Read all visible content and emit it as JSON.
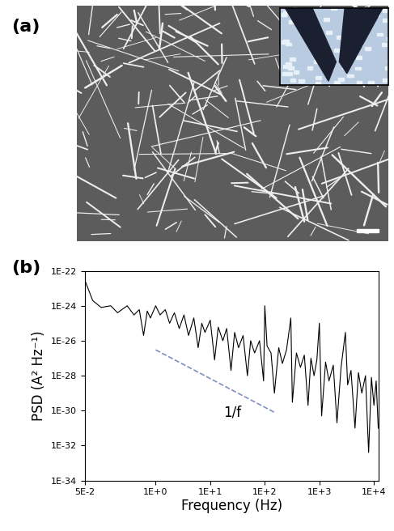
{
  "panel_labels": [
    "(a)",
    "(b)"
  ],
  "chart_data": {
    "type": "line",
    "xlabel": "Frequency (Hz)",
    "ylabel": "PSD (A² Hz⁻¹)",
    "log": true,
    "grid": false,
    "color": "#000000",
    "line_style": "solid",
    "x": [
      0.05,
      0.07,
      0.1,
      0.15,
      0.2,
      0.3,
      0.4,
      0.5,
      0.6,
      0.7,
      0.8,
      1.0,
      1.2,
      1.5,
      1.8,
      2.2,
      2.7,
      3.3,
      4,
      5,
      6,
      7,
      8,
      10,
      12,
      14,
      17,
      20,
      24,
      28,
      33,
      40,
      48,
      55,
      65,
      80,
      95,
      100,
      110,
      130,
      150,
      180,
      210,
      250,
      300,
      320,
      380,
      450,
      530,
      620,
      700,
      800,
      900,
      1000,
      1100,
      1300,
      1500,
      1800,
      2100,
      2500,
      3000,
      3300,
      3800,
      4500,
      5200,
      6000,
      7000,
      8000,
      9000,
      10000,
      11000,
      12000
    ],
    "values": [
      3e-23,
      2e-24,
      8e-25,
      1e-24,
      4e-25,
      1e-24,
      3e-25,
      6e-25,
      2e-26,
      5e-25,
      2e-25,
      1e-24,
      3e-25,
      6e-25,
      1e-25,
      4e-25,
      5e-26,
      3e-25,
      2e-26,
      2e-25,
      4e-27,
      1e-25,
      3e-26,
      1.5e-25,
      8e-28,
      6e-26,
      1e-26,
      5e-26,
      2e-28,
      3e-26,
      4e-27,
      2e-26,
      1e-28,
      1e-26,
      2e-27,
      1e-26,
      5e-29,
      1e-24,
      5e-27,
      2e-27,
      1e-29,
      4e-27,
      5e-28,
      3e-27,
      2e-25,
      3e-30,
      2e-27,
      3e-28,
      1.5e-27,
      2e-30,
      1e-27,
      1e-28,
      8e-28,
      1e-25,
      5e-31,
      6e-28,
      5e-29,
      4e-28,
      2e-31,
      3e-28,
      3e-26,
      3e-29,
      2e-28,
      1e-31,
      1.5e-28,
      1e-29,
      1e-28,
      4e-33,
      8e-29,
      2e-30,
      5e-29,
      1e-31
    ],
    "xlim": [
      0.05,
      12000
    ],
    "xticks": [
      {
        "value": 0.05,
        "label": "5E-2"
      },
      {
        "value": 1,
        "label": "1E+0"
      },
      {
        "value": 10,
        "label": "1E+1"
      },
      {
        "value": 100,
        "label": "1E+2"
      },
      {
        "value": 1000,
        "label": "1E+3"
      },
      {
        "value": 10000,
        "label": "1E+4"
      }
    ],
    "ylim": [
      1e-34,
      1e-22
    ],
    "yticks": [
      {
        "value": 1e-34,
        "label": "1E-34"
      },
      {
        "value": 1e-32,
        "label": "1E-32"
      },
      {
        "value": 1e-30,
        "label": "1E-30"
      },
      {
        "value": 1e-28,
        "label": "1E-28"
      },
      {
        "value": 1e-26,
        "label": "1E-26"
      },
      {
        "value": 1e-24,
        "label": "1E-24"
      },
      {
        "value": 1e-22,
        "label": "1E-22"
      }
    ],
    "reference_line": {
      "x": [
        1,
        150
      ],
      "values": [
        3e-27,
        8e-31
      ],
      "color": "#7f8fc0",
      "line_style": "dashed"
    },
    "annotations": [
      {
        "text": "1/f",
        "x": 25,
        "y": 2e-30
      }
    ]
  }
}
